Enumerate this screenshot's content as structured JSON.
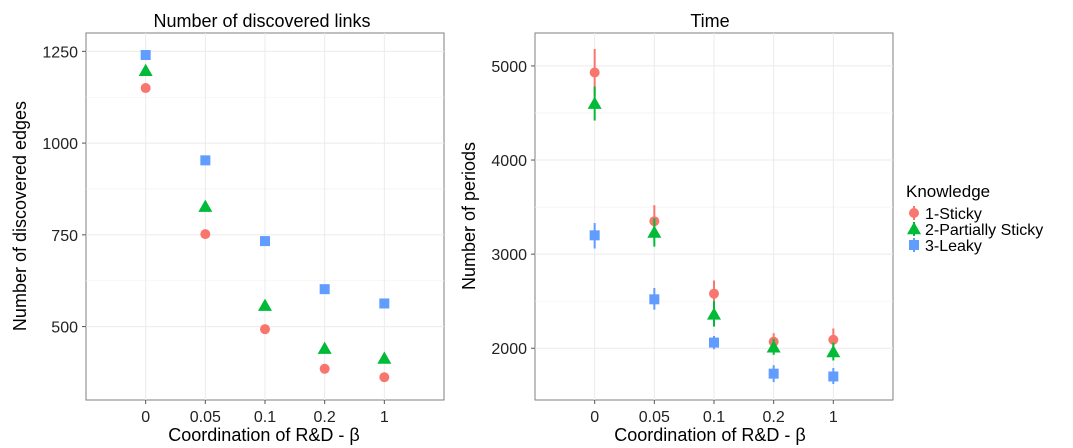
{
  "chart_data": [
    {
      "type": "scatter",
      "title": "Number of discovered links",
      "xlabel": "Coordination of R&D - β",
      "ylabel": "Number of discovered edges",
      "categories": [
        "0",
        "0.05",
        "0.1",
        "0.2",
        "1"
      ],
      "ylim": [
        300,
        1300
      ],
      "yticks": [
        500,
        750,
        1000,
        1250
      ],
      "grid": true,
      "series": [
        {
          "name": "1-Sticky",
          "values": [
            1150,
            752,
            493,
            385,
            362
          ]
        },
        {
          "name": "2-Partially Sticky",
          "values": [
            1197,
            827,
            557,
            440,
            413
          ]
        },
        {
          "name": "3-Leaky",
          "values": [
            1240,
            953,
            733,
            602,
            563
          ]
        }
      ]
    },
    {
      "type": "scatter",
      "title": "Time",
      "xlabel": "Coordination of R&D - β",
      "ylabel": "Number of periods",
      "categories": [
        "0",
        "0.05",
        "0.1",
        "0.2",
        "1"
      ],
      "ylim": [
        1450,
        5350
      ],
      "yticks": [
        2000,
        3000,
        4000,
        5000
      ],
      "grid": true,
      "error_bars": true,
      "series": [
        {
          "name": "1-Sticky",
          "values": [
            4930,
            3350,
            2580,
            2070,
            2090
          ],
          "err_low": [
            4680,
            3180,
            2450,
            1980,
            1980
          ],
          "err_high": [
            5180,
            3520,
            2720,
            2160,
            2210
          ]
        },
        {
          "name": "2-Partially Sticky",
          "values": [
            4600,
            3230,
            2360,
            2010,
            1960
          ],
          "err_low": [
            4420,
            3080,
            2230,
            1930,
            1870
          ],
          "err_high": [
            4780,
            3380,
            2500,
            2100,
            2060
          ]
        },
        {
          "name": "3-Leaky",
          "values": [
            3200,
            2520,
            2060,
            1730,
            1700
          ],
          "err_low": [
            3060,
            2410,
            1990,
            1640,
            1620
          ],
          "err_high": [
            3330,
            2640,
            2130,
            1820,
            1790
          ]
        }
      ]
    }
  ],
  "legend": {
    "title": "Knowledge",
    "placement": "right",
    "items": [
      "1-Sticky",
      "2-Partially Sticky",
      "3-Leaky"
    ]
  },
  "colors": {
    "1-Sticky": "#F8766D",
    "2-Partially Sticky": "#00BA38",
    "3-Leaky": "#619CFF",
    "grid": "#ebebeb",
    "panel_border": "#7f7f7f"
  },
  "markers": {
    "1-Sticky": "circle",
    "2-Partially Sticky": "triangle",
    "3-Leaky": "square"
  }
}
